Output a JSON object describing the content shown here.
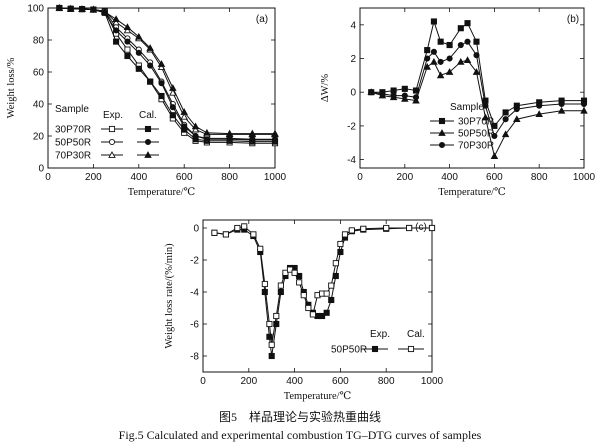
{
  "chart_data": [
    {
      "id": "a",
      "type": "line",
      "panel_label": "(a)",
      "xlabel": "Temperature/℃",
      "ylabel": "Weight loss/%",
      "xlim": [
        0,
        1000
      ],
      "ylim": [
        0,
        100
      ],
      "xticks": [
        0,
        200,
        400,
        600,
        800,
        1000
      ],
      "yticks": [
        0,
        20,
        40,
        60,
        80,
        100
      ],
      "legend": {
        "placement": "bottom-left",
        "header": [
          "Sample",
          "Exp.",
          "Cal."
        ],
        "rows": [
          "30P70R",
          "50P50R",
          "70P30R"
        ]
      },
      "series": [
        {
          "name": "30P70R",
          "kind": "Exp.",
          "marker": "square-open",
          "x": [
            50,
            100,
            150,
            200,
            250,
            300,
            350,
            400,
            450,
            500,
            550,
            600,
            650,
            700,
            800,
            900,
            1000
          ],
          "y": [
            100,
            99.5,
            99.3,
            99,
            98,
            84,
            74,
            64,
            54,
            43,
            31,
            22,
            17,
            16,
            16,
            15.5,
            15.5
          ]
        },
        {
          "name": "30P70R",
          "kind": "Cal.",
          "marker": "square-filled",
          "x": [
            50,
            100,
            150,
            200,
            250,
            300,
            350,
            400,
            450,
            500,
            550,
            600,
            650,
            700,
            800,
            900,
            1000
          ],
          "y": [
            100,
            99.5,
            99.3,
            99,
            97,
            79,
            70,
            62,
            54,
            45,
            33,
            24,
            18,
            17,
            17,
            16.5,
            16.5
          ]
        },
        {
          "name": "50P50R",
          "kind": "Exp.",
          "marker": "circle-open",
          "x": [
            50,
            100,
            150,
            200,
            250,
            300,
            350,
            400,
            450,
            500,
            550,
            600,
            650,
            700,
            800,
            900,
            1000
          ],
          "y": [
            100,
            99.5,
            99.3,
            99,
            98,
            88,
            81,
            74,
            66,
            54,
            40,
            27,
            20,
            18,
            18,
            17.5,
            17.5
          ]
        },
        {
          "name": "50P50R",
          "kind": "Cal.",
          "marker": "circle-filled",
          "x": [
            50,
            100,
            150,
            200,
            250,
            300,
            350,
            400,
            450,
            500,
            550,
            600,
            650,
            700,
            800,
            900,
            1000
          ],
          "y": [
            100,
            99.5,
            99.3,
            99,
            97,
            86,
            79,
            72,
            64,
            53,
            38,
            26,
            20,
            18.5,
            18.5,
            18,
            18
          ]
        },
        {
          "name": "70P30R",
          "kind": "Exp.",
          "marker": "triangle-open",
          "x": [
            50,
            100,
            150,
            200,
            250,
            300,
            350,
            400,
            450,
            500,
            550,
            600,
            650,
            700,
            800,
            900,
            1000
          ],
          "y": [
            100,
            99.5,
            99.3,
            99,
            98,
            91,
            86,
            81,
            74,
            63,
            47,
            32,
            24,
            21,
            21,
            21,
            21
          ]
        },
        {
          "name": "70P30R",
          "kind": "Cal.",
          "marker": "triangle-filled",
          "x": [
            50,
            100,
            150,
            200,
            250,
            300,
            350,
            400,
            450,
            500,
            550,
            600,
            650,
            700,
            800,
            900,
            1000
          ],
          "y": [
            100,
            99.5,
            99.3,
            99,
            97.5,
            93,
            88,
            82,
            75,
            65,
            50,
            35,
            26,
            22,
            21.5,
            21.5,
            21.5
          ]
        }
      ]
    },
    {
      "id": "b",
      "type": "line",
      "panel_label": "(b)",
      "xlabel": "Temperature/℃",
      "ylabel": "ΔW/%",
      "xlim": [
        0,
        1000
      ],
      "ylim": [
        -4.5,
        5
      ],
      "xticks": [
        0,
        200,
        400,
        600,
        800,
        1000
      ],
      "yticks": [
        -4,
        -2,
        0,
        2,
        4
      ],
      "legend": {
        "placement": "center-right",
        "header": "Sample",
        "rows": [
          "30P70R",
          "50P50R",
          "70P30R"
        ]
      },
      "series": [
        {
          "name": "30P70R",
          "marker": "square-filled",
          "x": [
            50,
            100,
            150,
            200,
            250,
            300,
            330,
            360,
            400,
            450,
            480,
            520,
            560,
            600,
            650,
            700,
            800,
            900,
            1000
          ],
          "y": [
            0,
            0,
            0.1,
            0.2,
            0.1,
            2.5,
            4.2,
            3.0,
            2.8,
            3.8,
            4.1,
            3.0,
            -0.5,
            -2.0,
            -1.2,
            -0.8,
            -0.6,
            -0.5,
            -0.5
          ]
        },
        {
          "name": "50P50R",
          "marker": "triangle-filled",
          "x": [
            50,
            100,
            150,
            200,
            250,
            300,
            330,
            360,
            400,
            450,
            480,
            520,
            560,
            600,
            650,
            700,
            800,
            900,
            1000
          ],
          "y": [
            0,
            -0.2,
            -0.3,
            -0.4,
            -0.5,
            1.5,
            1.8,
            1.0,
            1.2,
            1.8,
            1.9,
            1.2,
            -1.5,
            -3.8,
            -2.5,
            -1.6,
            -1.3,
            -1.1,
            -1.1
          ]
        },
        {
          "name": "70P30R",
          "marker": "circle-filled",
          "x": [
            50,
            100,
            150,
            200,
            250,
            300,
            330,
            360,
            400,
            450,
            480,
            520,
            560,
            600,
            650,
            700,
            800,
            900,
            1000
          ],
          "y": [
            0,
            -0.1,
            -0.2,
            -0.2,
            -0.3,
            2.0,
            2.4,
            1.8,
            2.0,
            2.8,
            3.0,
            2.2,
            -0.8,
            -2.6,
            -1.6,
            -1.0,
            -0.8,
            -0.7,
            -0.7
          ]
        }
      ]
    },
    {
      "id": "c",
      "type": "line",
      "panel_label": "(c)",
      "xlabel": "Temperature/℃",
      "ylabel": "Weight loss rate/(%/min)",
      "xlim": [
        0,
        1000
      ],
      "ylim": [
        -9,
        0.5
      ],
      "xticks": [
        0,
        200,
        400,
        600,
        800,
        1000
      ],
      "yticks": [
        -8,
        -6,
        -4,
        -2,
        0
      ],
      "legend": {
        "placement": "bottom-right",
        "sample": "50P50R",
        "header": [
          "Exp.",
          "Cal."
        ]
      },
      "series": [
        {
          "name": "50P50R",
          "kind": "Exp.",
          "marker": "square-filled",
          "x": [
            50,
            100,
            150,
            180,
            220,
            250,
            270,
            290,
            300,
            320,
            340,
            360,
            380,
            400,
            420,
            440,
            460,
            480,
            500,
            520,
            540,
            560,
            580,
            600,
            620,
            650,
            700,
            800,
            900,
            1000
          ],
          "y": [
            -0.3,
            -0.4,
            -0.1,
            -0.1,
            -0.5,
            -1.5,
            -4.0,
            -6.8,
            -8.0,
            -6.0,
            -4.0,
            -3.0,
            -2.5,
            -2.5,
            -3.0,
            -4.0,
            -4.8,
            -5.3,
            -5.5,
            -5.5,
            -5.3,
            -4.5,
            -3.0,
            -1.5,
            -0.6,
            -0.2,
            -0.1,
            -0.05,
            0,
            0
          ]
        },
        {
          "name": "50P50R",
          "kind": "Cal.",
          "marker": "square-open",
          "x": [
            50,
            100,
            150,
            180,
            220,
            250,
            270,
            290,
            300,
            320,
            340,
            360,
            380,
            400,
            420,
            440,
            460,
            480,
            500,
            520,
            540,
            560,
            580,
            600,
            620,
            650,
            700,
            800,
            900,
            1000
          ],
          "y": [
            -0.3,
            -0.4,
            0,
            0.1,
            -0.4,
            -1.3,
            -3.5,
            -6.0,
            -7.3,
            -5.5,
            -3.6,
            -2.8,
            -2.6,
            -2.8,
            -3.4,
            -4.2,
            -5.0,
            -5.4,
            -4.2,
            -4.1,
            -4.1,
            -3.6,
            -2.2,
            -1.0,
            -0.4,
            -0.15,
            -0.05,
            0,
            0,
            0
          ]
        }
      ]
    }
  ],
  "caption": {
    "zh": "图5　样品理论与实验热重曲线",
    "en": "Fig.5   Calculated and experimental combustion TG–DTG curves of samples"
  }
}
